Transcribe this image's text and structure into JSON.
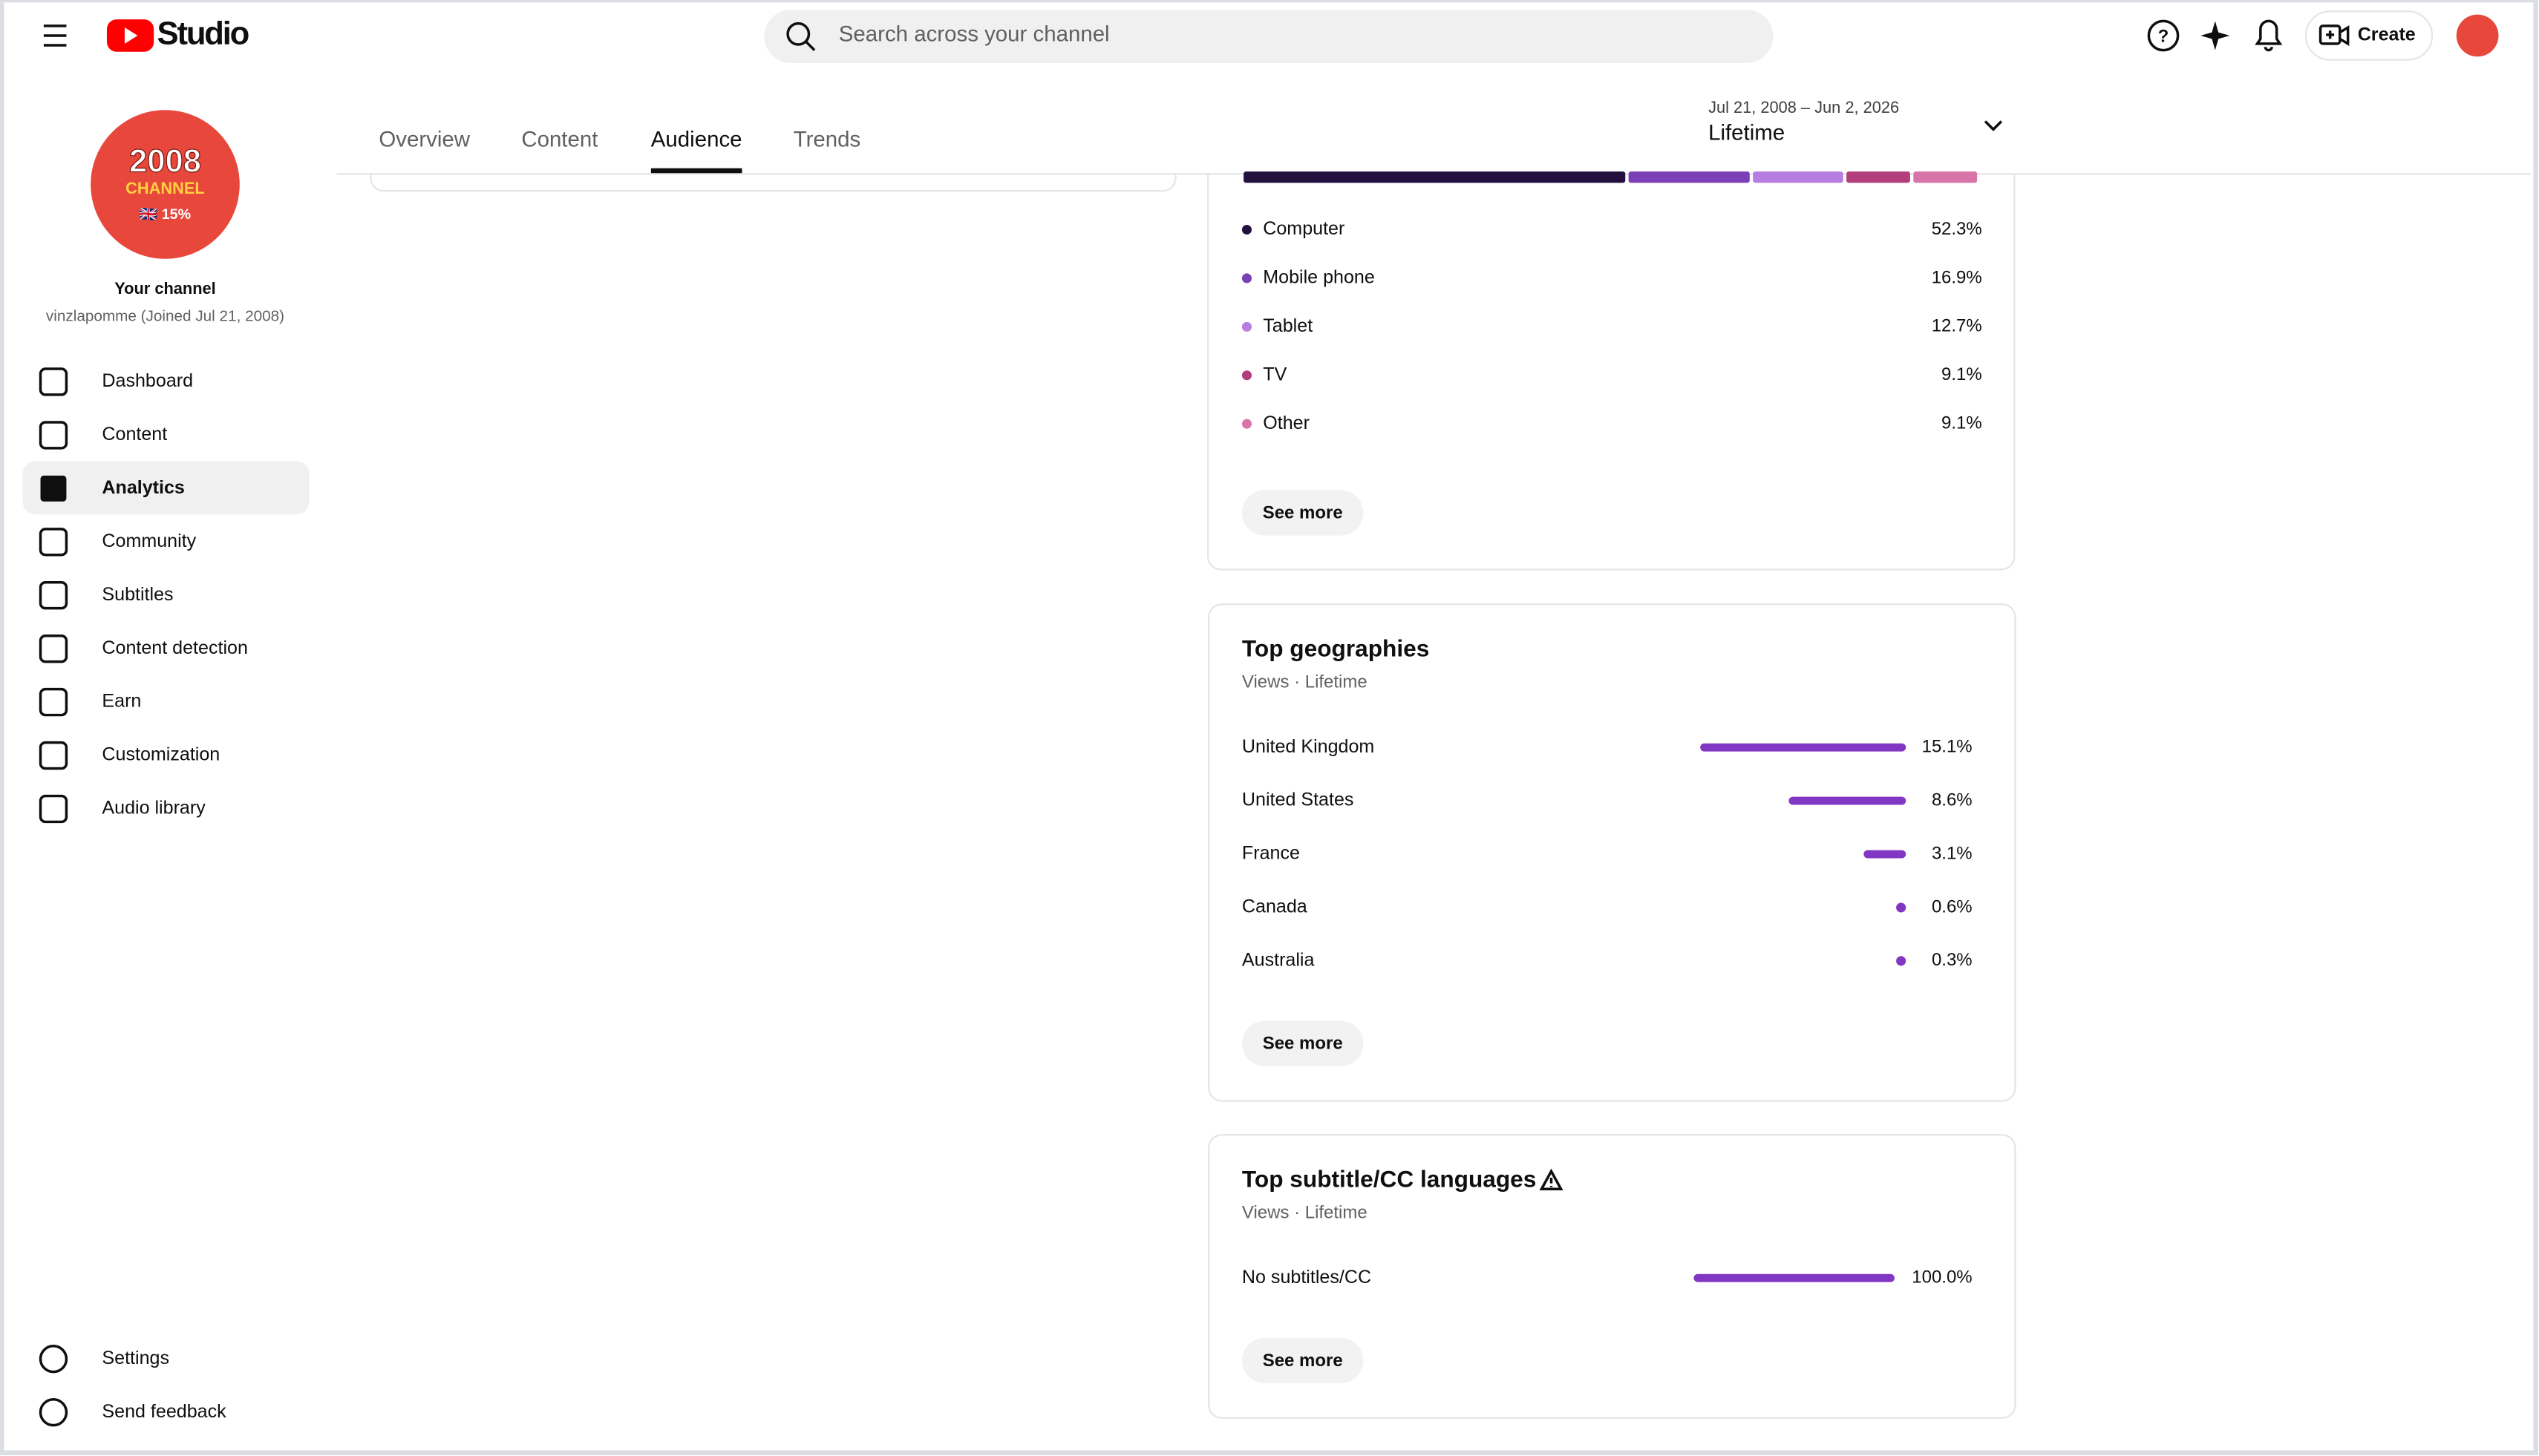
{
  "header": {
    "logo": "Studio",
    "search_placeholder": "Search across your channel",
    "create": "Create"
  },
  "sidebar": {
    "avatar": [
      "2008",
      "CHANNEL",
      "🇬🇧 15%"
    ],
    "channel_title": "Your channel",
    "channel_sub": "vinzlapomme (Joined Jul 21, 2008)",
    "nav": [
      "Dashboard",
      "Content",
      "Analytics",
      "Community",
      "Subtitles",
      "Content detection",
      "Earn",
      "Customization",
      "Audio library"
    ],
    "active": 2,
    "footer": [
      "Settings",
      "Send feedback"
    ]
  },
  "tabs": {
    "items": [
      "Overview",
      "Content",
      "Audience",
      "Trends"
    ],
    "active": 2
  },
  "date_range": {
    "range": "Jul 21, 2008 – Jun 2, 2026",
    "label": "Lifetime"
  },
  "devices": {
    "items": [
      {
        "name": "Computer",
        "color": "#24103f",
        "value": 52.3,
        "label": "52.3%"
      },
      {
        "name": "Mobile phone",
        "color": "#7b3fb8",
        "value": 16.9,
        "label": "16.9%"
      },
      {
        "name": "Tablet",
        "color": "#b77de0",
        "value": 12.7,
        "label": "12.7%"
      },
      {
        "name": "TV",
        "color": "#b23f7c",
        "value": 9.1,
        "label": "9.1%"
      },
      {
        "name": "Other",
        "color": "#d874a8",
        "value": 9.1,
        "label": "9.1%"
      }
    ],
    "see_more": "See more"
  },
  "geographies": {
    "title": "Top geographies",
    "subtitle": "Views · Lifetime",
    "bar_color": "#8236c4",
    "items": [
      {
        "name": "United Kingdom",
        "value": 15.1,
        "label": "15.1%"
      },
      {
        "name": "United States",
        "value": 8.6,
        "label": "8.6%"
      },
      {
        "name": "France",
        "value": 3.1,
        "label": "3.1%"
      },
      {
        "name": "Canada",
        "value": 0.6,
        "label": "0.6%"
      },
      {
        "name": "Australia",
        "value": 0.3,
        "label": "0.3%"
      }
    ],
    "see_more": "See more"
  },
  "subtitles": {
    "title": "Top subtitle/CC languages",
    "subtitle": "Views · Lifetime",
    "bar_color": "#8236c4",
    "items": [
      {
        "name": "No subtitles/CC",
        "value": 100.0,
        "label": "100.0%"
      }
    ],
    "see_more": "See more"
  }
}
